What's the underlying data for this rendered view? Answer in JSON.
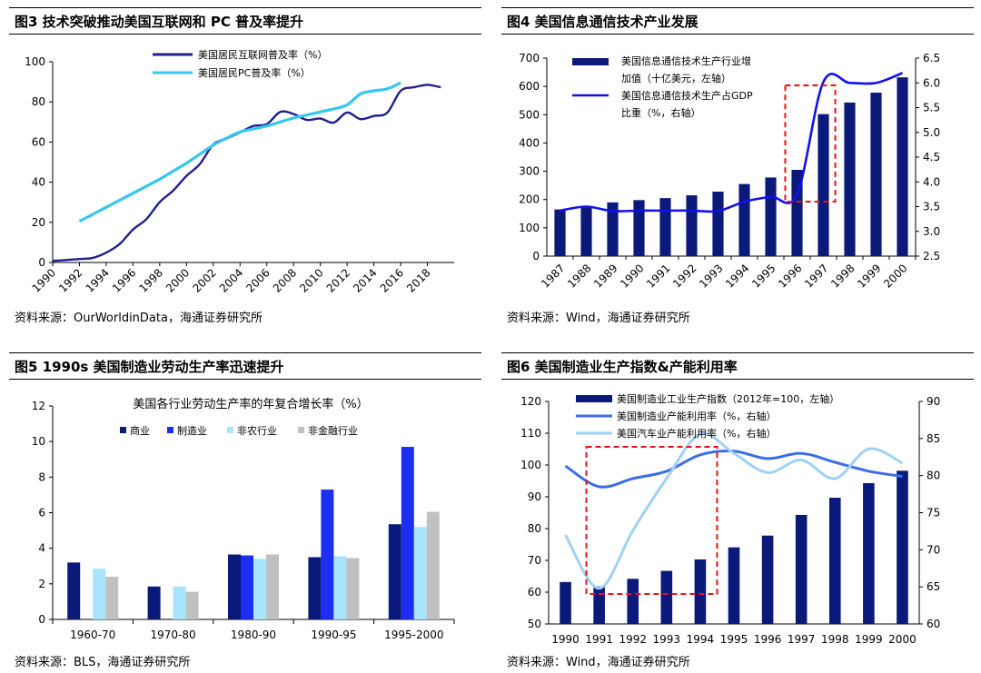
{
  "panels": [
    {
      "title": "图3  技术突破推动美国互联网和 PC 普及率提升",
      "source": "资料来源：OurWorldinData，海通证券研究所"
    },
    {
      "title": "图4  美国信息通信技术产业发展",
      "source": "资料来源：Wind，海通证券研究所"
    },
    {
      "title": "图5  1990s 美国制造业劳动生产率迅速提升",
      "source": "资料来源：BLS，海通证券研究所"
    },
    {
      "title": "图6  美国制造业生产指数&产能利用率",
      "source": "资料来源：Wind，海通证券研究所"
    }
  ],
  "chart_data": [
    {
      "type": "line",
      "title": "",
      "x_ticks": [
        "1990",
        "1992",
        "1994",
        "1996",
        "1998",
        "2000",
        "2002",
        "2004",
        "2006",
        "2008",
        "2010",
        "2012",
        "2014",
        "2016",
        "2018"
      ],
      "ylim": [
        0,
        100
      ],
      "y_ticks": [
        0,
        20,
        40,
        60,
        80,
        100
      ],
      "legend": "top",
      "series": [
        {
          "name": "美国居民互联网普及率（%）",
          "color": "#1f1f8f",
          "x": [
            1990,
            1991,
            1992,
            1993,
            1994,
            1995,
            1996,
            1997,
            1998,
            1999,
            2000,
            2001,
            2002,
            2003,
            2004,
            2005,
            2006,
            2007,
            2008,
            2009,
            2010,
            2011,
            2012,
            2013,
            2014,
            2015,
            2016,
            2017,
            2018,
            2019
          ],
          "y": [
            0.8,
            1.2,
            1.7,
            2.3,
            4.9,
            9.2,
            16.4,
            21.6,
            30.1,
            35.8,
            43.1,
            49.1,
            58.8,
            61.7,
            64.8,
            68.0,
            68.9,
            75.0,
            74.0,
            71.0,
            71.7,
            69.7,
            74.7,
            71.4,
            73.0,
            74.6,
            85.5,
            87.3,
            88.5,
            87.3
          ]
        },
        {
          "name": "美国居民PC普及率（%）",
          "color": "#37c6f0",
          "x": [
            1992,
            1993,
            1994,
            1995,
            1996,
            1997,
            1998,
            1999,
            2000,
            2001,
            2002,
            2003,
            2004,
            2005,
            2006,
            2007,
            2008,
            2009,
            2010,
            2011,
            2012,
            2013,
            2014,
            2015,
            2016
          ],
          "y": [
            20.5,
            24.0,
            27.5,
            31.0,
            34.5,
            38.0,
            41.5,
            45.5,
            49.5,
            54.0,
            58.5,
            62.0,
            65.0,
            66.5,
            68.0,
            70.0,
            72.0,
            73.5,
            75.0,
            76.5,
            78.5,
            84.0,
            85.5,
            86.5,
            89.5
          ]
        }
      ]
    },
    {
      "type": "bar+line",
      "title": "",
      "categories": [
        "1987",
        "1988",
        "1989",
        "1990",
        "1991",
        "1992",
        "1993",
        "1994",
        "1995",
        "1996",
        "1997",
        "1998",
        "1999",
        "2000"
      ],
      "ylim_left": [
        0,
        700
      ],
      "y_ticks_left": [
        0,
        100,
        200,
        300,
        400,
        500,
        600,
        700
      ],
      "ylim_right": [
        2.5,
        6.5
      ],
      "y_ticks_right": [
        "2.5",
        "3.0",
        "3.5",
        "4.0",
        "4.5",
        "5.0",
        "5.5",
        "6.0",
        "6.5"
      ],
      "legend": "top",
      "series": [
        {
          "name": "美国信息通信技术生产行业增加值（十亿美元，左轴）",
          "type": "bar",
          "axis": "left",
          "color": "#0b1a7a",
          "values": [
            165,
            175,
            190,
            198,
            205,
            215,
            228,
            255,
            278,
            305,
            502,
            543,
            578,
            632
          ]
        },
        {
          "name": "美国信息通信技术生产占GDP比重（%，右轴）",
          "type": "line",
          "axis": "right",
          "color": "#1111ee",
          "values": [
            3.42,
            3.5,
            3.41,
            3.42,
            3.42,
            3.42,
            3.41,
            3.6,
            3.7,
            3.75,
            6.02,
            6.0,
            6.0,
            6.2
          ]
        }
      ],
      "highlight_box": {
        "from": "1996",
        "to": "1997",
        "color": "#ee1111"
      }
    },
    {
      "type": "bar",
      "title": "美国各行业劳动生产率的年复合增长率（%）",
      "categories": [
        "1960-70",
        "1970-80",
        "1980-90",
        "1990-95",
        "1995-2000"
      ],
      "ylim": [
        0,
        12
      ],
      "y_ticks": [
        0,
        2,
        4,
        6,
        8,
        10,
        12
      ],
      "legend": "top",
      "series": [
        {
          "name": "商业",
          "color": "#0b1a7a",
          "values": [
            3.2,
            1.85,
            3.65,
            3.5,
            5.35
          ]
        },
        {
          "name": "制造业",
          "color": "#1c2ef2",
          "values": [
            null,
            null,
            3.6,
            7.3,
            9.7
          ]
        },
        {
          "name": "非农行业",
          "color": "#a8e4fb",
          "values": [
            2.85,
            1.85,
            3.4,
            3.55,
            5.2
          ]
        },
        {
          "name": "非金融行业",
          "color": "#c0c0c0",
          "values": [
            2.4,
            1.55,
            3.65,
            3.45,
            6.05
          ]
        }
      ]
    },
    {
      "type": "bar+line",
      "title": "",
      "categories": [
        "1990",
        "1991",
        "1992",
        "1993",
        "1994",
        "1995",
        "1996",
        "1997",
        "1998",
        "1999",
        "2000"
      ],
      "ylim_left": [
        50,
        120
      ],
      "y_ticks_left": [
        50,
        60,
        70,
        80,
        90,
        100,
        110,
        120
      ],
      "ylim_right": [
        60,
        90
      ],
      "y_ticks_right": [
        60,
        65,
        70,
        75,
        80,
        85,
        90
      ],
      "legend": "top",
      "series": [
        {
          "name": "美国制造业工业生产指数（2012年=100，左轴）",
          "type": "bar",
          "axis": "left",
          "color": "#0b1a7a",
          "values": [
            63.2,
            61.8,
            64.2,
            66.7,
            70.3,
            74.1,
            77.8,
            84.3,
            89.7,
            94.3,
            98.2
          ]
        },
        {
          "name": "美国制造业产能利用率（%，右轴）",
          "type": "line",
          "axis": "right",
          "color": "#3d6de6",
          "values": [
            81.3,
            78.5,
            79.6,
            80.6,
            82.8,
            83.3,
            82.3,
            83.0,
            81.8,
            80.6,
            79.9
          ]
        },
        {
          "name": "美国汽车业产能利用率（%，右轴）",
          "type": "line",
          "axis": "right",
          "color": "#9fd1f6",
          "values": [
            72.0,
            64.8,
            72.6,
            79.6,
            85.6,
            83.0,
            80.4,
            82.1,
            79.6,
            83.6,
            81.7
          ]
        }
      ],
      "highlight_box": {
        "from": "1991",
        "to": "1994",
        "color": "#ee1111"
      }
    }
  ]
}
